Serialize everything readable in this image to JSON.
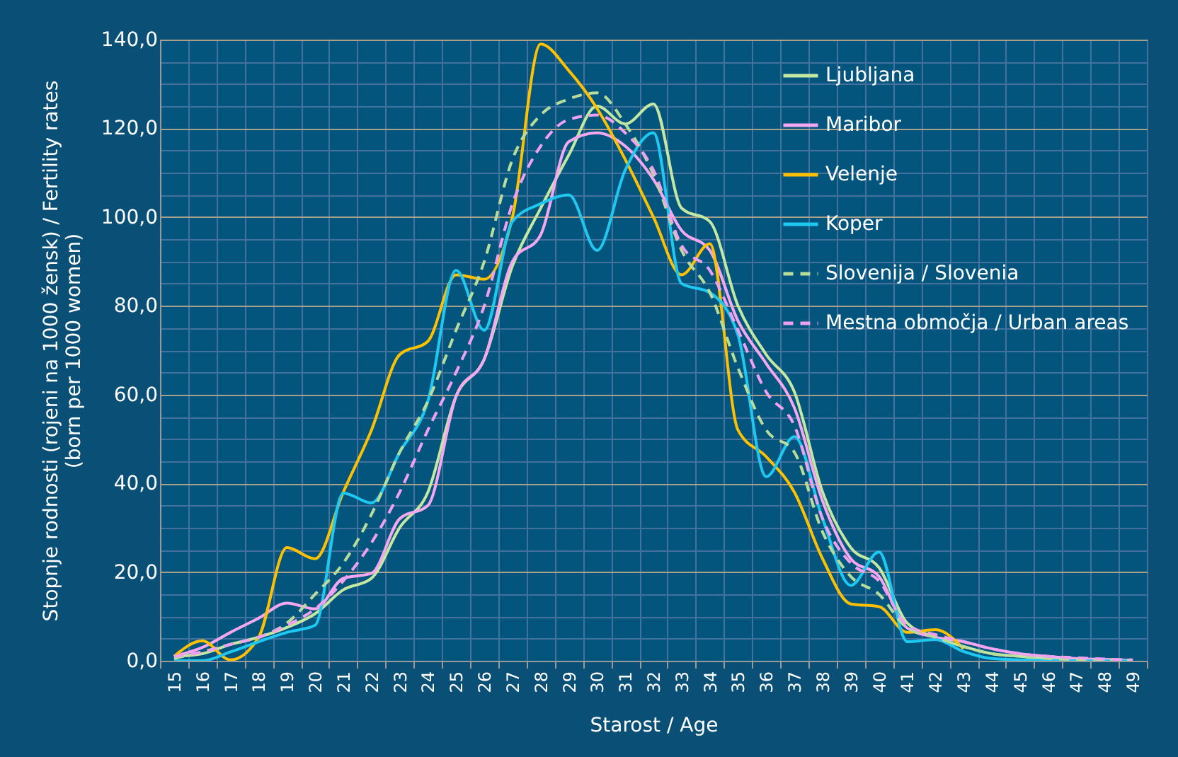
{
  "chart_data": {
    "type": "line",
    "xlabel": "Starost / Age",
    "ylabel": "Stopnje rodnosti (rojeni na 1000 žensk) / Fertility rates (born per 1000 women)",
    "categories": [
      "15",
      "16",
      "17",
      "18",
      "19",
      "20",
      "21",
      "22",
      "23",
      "24",
      "25",
      "26",
      "27",
      "28",
      "29",
      "30",
      "31",
      "32",
      "33",
      "34",
      "35",
      "36",
      "37",
      "38",
      "39",
      "40",
      "41",
      "42",
      "43",
      "44",
      "45",
      "46",
      "47",
      "48",
      "49"
    ],
    "ylim": [
      0,
      140
    ],
    "yticks": [
      {
        "value": 0,
        "label": "0,0"
      },
      {
        "value": 5,
        "label": null
      },
      {
        "value": 10,
        "label": null
      },
      {
        "value": 15,
        "label": null
      },
      {
        "value": 20,
        "label": "20,0"
      },
      {
        "value": 25,
        "label": null
      },
      {
        "value": 30,
        "label": null
      },
      {
        "value": 35,
        "label": null
      },
      {
        "value": 40,
        "label": "40,0"
      },
      {
        "value": 45,
        "label": null
      },
      {
        "value": 50,
        "label": null
      },
      {
        "value": 55,
        "label": null
      },
      {
        "value": 60,
        "label": "60,0"
      },
      {
        "value": 65,
        "label": null
      },
      {
        "value": 70,
        "label": null
      },
      {
        "value": 75,
        "label": null
      },
      {
        "value": 80,
        "label": "80,0"
      },
      {
        "value": 85,
        "label": null
      },
      {
        "value": 90,
        "label": null
      },
      {
        "value": 95,
        "label": null
      },
      {
        "value": 100,
        "label": "100,0"
      },
      {
        "value": 105,
        "label": null
      },
      {
        "value": 110,
        "label": null
      },
      {
        "value": 115,
        "label": null
      },
      {
        "value": 120,
        "label": "120,0"
      },
      {
        "value": 125,
        "label": null
      },
      {
        "value": 130,
        "label": null
      },
      {
        "value": 135,
        "label": null
      },
      {
        "value": 140,
        "label": "140,0"
      }
    ],
    "grid": true,
    "legend": "top right",
    "marker": "none",
    "series": [
      {
        "name": "Ljubljana",
        "color": "#c4e8a2",
        "line_style": "solid",
        "values": [
          1,
          1.6,
          3.7,
          5.3,
          7.5,
          10.6,
          16,
          18.6,
          30,
          38,
          59.6,
          68,
          89,
          102,
          114,
          125,
          121,
          125.5,
          102,
          99,
          80,
          69,
          60.6,
          38,
          25.5,
          21,
          8.5,
          5.3,
          3.2,
          1.6,
          1,
          0.5,
          0.3,
          0.2,
          0.1
        ]
      },
      {
        "name": "Maribor",
        "color": "#f5a8f0",
        "line_style": "solid",
        "values": [
          1,
          3,
          6.4,
          9.6,
          13,
          11.7,
          18.6,
          19.7,
          32,
          35,
          59.6,
          68,
          90,
          96,
          117,
          119,
          116,
          108.5,
          97,
          92.5,
          76.6,
          67,
          57,
          36,
          23,
          19,
          7.4,
          5.3,
          4.3,
          2.7,
          1.6,
          1,
          0.5,
          0.3,
          0.1
        ]
      },
      {
        "name": "Velenje",
        "color": "#ffc000",
        "line_style": "solid",
        "values": [
          1,
          4.5,
          0.2,
          5.3,
          25.5,
          23,
          38,
          52,
          69,
          72,
          87,
          86,
          100,
          139,
          133,
          124.5,
          113,
          100,
          87,
          94,
          52,
          46,
          38,
          23,
          12.8,
          12.2,
          6.4,
          7,
          2.7,
          null,
          null,
          null,
          null,
          null,
          null
        ]
      },
      {
        "name": "Koper",
        "color": "#1ec8f0",
        "line_style": "solid",
        "values": [
          0,
          0,
          2,
          4.3,
          6.4,
          8,
          37.8,
          35.6,
          47,
          58.5,
          88,
          74.5,
          99,
          103,
          105,
          92.5,
          110.6,
          119,
          85,
          83,
          73.4,
          41.5,
          50.5,
          32,
          17,
          24.5,
          4.3,
          4.8,
          2.1,
          0.5,
          0.2,
          0.1,
          0,
          0,
          0
        ]
      },
      {
        "name": "Slovenija / Slovenia",
        "color": "#b8dc9a",
        "line_style": "dashed",
        "values": [
          0.5,
          2,
          3.7,
          5.3,
          8.5,
          15,
          22,
          33,
          47,
          58.5,
          74.5,
          90,
          113,
          123,
          126.6,
          128,
          121,
          109.6,
          92.5,
          83,
          66,
          52,
          47,
          29,
          19,
          15,
          7.4,
          5.3,
          3.2,
          1.6,
          1,
          0.5,
          0.3,
          0.2,
          0.1
        ]
      },
      {
        "name": "Mestna območja / Urban areas",
        "color": "#f0a0f0",
        "line_style": "dashed",
        "values": [
          1,
          2,
          3.7,
          5.3,
          8,
          11.7,
          18,
          26.6,
          38,
          52,
          65,
          80,
          103,
          116,
          122,
          123,
          119,
          110.6,
          93.6,
          88,
          74.5,
          60.6,
          53,
          32,
          22,
          18,
          8,
          5.9,
          4.3,
          2.7,
          1.6,
          1,
          0.7,
          0.4,
          0.2
        ]
      }
    ]
  }
}
